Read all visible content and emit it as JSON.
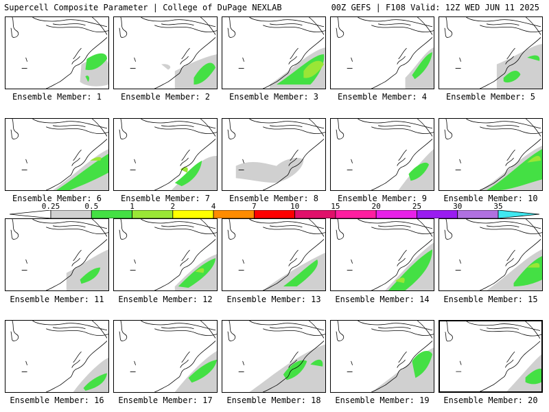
{
  "header": {
    "title_left": "Supercell Composite Parameter | College of DuPage NEXLAB",
    "title_right": "00Z GEFS | F108 Valid: 12Z WED JUN 11 2025"
  },
  "colorbar": {
    "labels": [
      "0.25",
      "0.5",
      "1",
      "2",
      "4",
      "7",
      "10",
      "15",
      "20",
      "25",
      "30",
      "35"
    ],
    "colors": [
      "#ffffff",
      "#d0d0d0",
      "#44e044",
      "#9ae636",
      "#ffff00",
      "#ff8c00",
      "#ff0000",
      "#e0106a",
      "#ff1ea0",
      "#e820e8",
      "#9a1cf0",
      "#b070e0",
      "#40e8f0"
    ]
  },
  "members": [
    {
      "label": "Ensemble Member: 1"
    },
    {
      "label": "Ensemble Member: 2"
    },
    {
      "label": "Ensemble Member: 3"
    },
    {
      "label": "Ensemble Member: 4"
    },
    {
      "label": "Ensemble Member: 5"
    },
    {
      "label": "Ensemble Member: 6"
    },
    {
      "label": "Ensemble Member: 7"
    },
    {
      "label": "Ensemble Member: 8"
    },
    {
      "label": "Ensemble Member: 9"
    },
    {
      "label": "Ensemble Member: 10"
    },
    {
      "label": "Ensemble Member: 11"
    },
    {
      "label": "Ensemble Member: 12"
    },
    {
      "label": "Ensemble Member: 13"
    },
    {
      "label": "Ensemble Member: 14"
    },
    {
      "label": "Ensemble Member: 15"
    },
    {
      "label": "Ensemble Member: 16"
    },
    {
      "label": "Ensemble Member: 17"
    },
    {
      "label": "Ensemble Member: 18"
    },
    {
      "label": "Ensemble Member: 19"
    },
    {
      "label": "Ensemble Member: 20"
    }
  ]
}
